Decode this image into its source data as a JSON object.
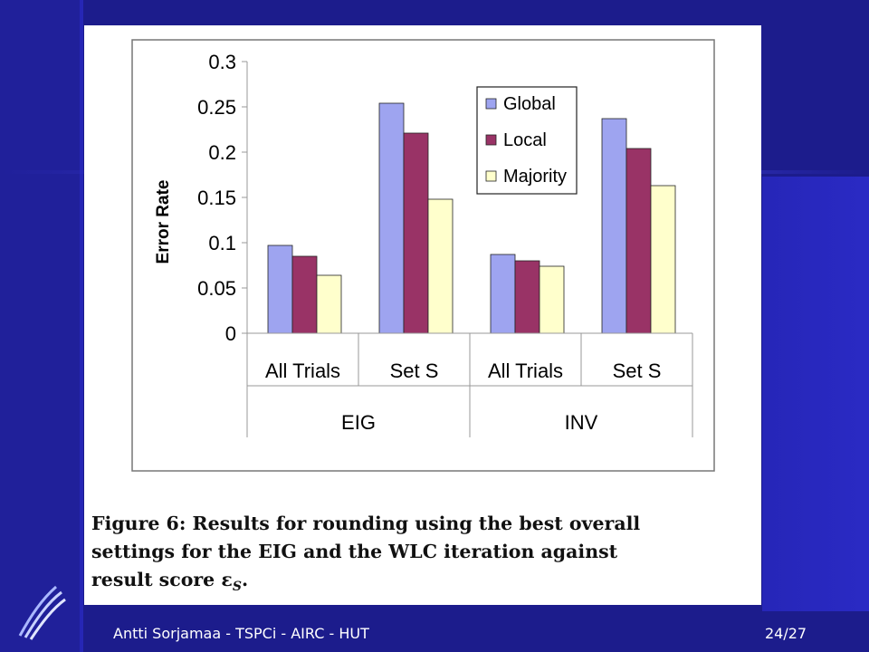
{
  "colors": {
    "slide_background": "#1c1c8c",
    "slide_gradient_light": "#3a3ad8",
    "global": "#9ea4f0",
    "local": "#993366",
    "majority": "#ffffcc"
  },
  "icons": {
    "logo": "university-logo-icon"
  },
  "chart_data": {
    "type": "bar",
    "title": "",
    "xlabel": "",
    "ylabel": "Error Rate",
    "ylim": [
      0,
      0.3
    ],
    "yticks": [
      "0",
      "0.05",
      "0.1",
      "0.15",
      "0.2",
      "0.25",
      "0.3"
    ],
    "grid": false,
    "legend_position": "top-center",
    "groups": [
      "EIG",
      "INV"
    ],
    "categories": [
      "All Trials",
      "Set S",
      "All Trials",
      "Set S"
    ],
    "series": [
      {
        "name": "Global",
        "values": [
          0.097,
          0.254,
          0.087,
          0.237
        ]
      },
      {
        "name": "Local",
        "values": [
          0.085,
          0.221,
          0.08,
          0.204
        ]
      },
      {
        "name": "Majority",
        "values": [
          0.064,
          0.148,
          0.074,
          0.163
        ]
      }
    ]
  },
  "caption": "Figure 6: Results for rounding using the best overall\nsettings for the EIG and the WLC iteration against\nresult score ε",
  "caption_subscript": "S",
  "caption_end": ".",
  "footer": {
    "left": "Antti Sorjamaa - TSPCi - AIRC - HUT",
    "right": "24/27"
  }
}
